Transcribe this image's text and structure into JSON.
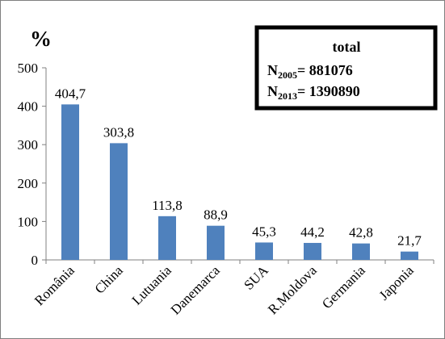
{
  "chart_data": {
    "type": "bar",
    "ylabel": "%",
    "ylim": [
      0,
      500
    ],
    "yticks": [
      "0",
      "100",
      "200",
      "300",
      "400",
      "500"
    ],
    "grid": false,
    "categories": [
      "România",
      "China",
      "Lutuania",
      "Danemarca",
      "SUA",
      "R.Moldova",
      "Germania",
      "Japonia"
    ],
    "values": [
      404.7,
      303.8,
      113.8,
      88.9,
      45.3,
      44.2,
      42.8,
      21.7
    ],
    "value_labels": [
      "404,7",
      "303,8",
      "113,8",
      "88,9",
      "45,3",
      "44,2",
      "42,8",
      "21,7"
    ],
    "bar_color": "#4f81bd",
    "annotation": {
      "title": "total",
      "line1_main": "N",
      "line1_sub": "2005",
      "line1_rest": "= 881076",
      "line2_main": "N",
      "line2_sub": "2013",
      "line2_rest": "= 1390890"
    }
  }
}
